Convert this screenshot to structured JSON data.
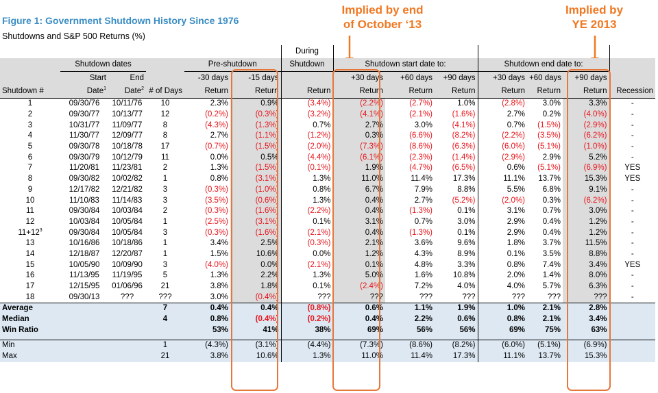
{
  "title": "Figure 1: Government Shutdown History Since 1976",
  "subtitle": "Shutdowns and S&P 500 Returns (%)",
  "callouts": {
    "left": [
      "Implied by end",
      "of October ‘13"
    ],
    "right": [
      "Implied by",
      "YE 2013"
    ]
  },
  "colors": {
    "accent": "#f07822",
    "title": "#3a8dc4",
    "negative": "#e8141a",
    "summary_bg": "#dde8f3",
    "highlight_bg": "#dcdcdc"
  },
  "header": {
    "during_top": "During",
    "shutdown_dates": "Shutdown dates",
    "pre_shutdown": "Pre-shutdown",
    "during_shutdown": "Shutdown",
    "start_group": "Shutdown start date to:",
    "end_group": "Shutdown end date to:",
    "start": "Start",
    "end": "End",
    "m30": "-30 days",
    "m15": "-15 days",
    "p30": "+30 days",
    "p60": "+60 days",
    "p90": "+90 days",
    "shutdown_num": "Shutdown #",
    "date": "Date",
    "sup1": "1",
    "sup2": "2",
    "num_days": "# of Days",
    "return": "Return",
    "recession": "Recession"
  },
  "chart_data": {
    "type": "table",
    "columns": [
      "Shutdown #",
      "Start Date",
      "End Date",
      "# of Days",
      "-30 days Return",
      "-15 days Return",
      "During Shutdown Return",
      "Start +30 days Return",
      "Start +60 days Return",
      "Start +90 days Return",
      "End +30 days Return",
      "End +60 days Return",
      "End +90 days Return",
      "Recession"
    ],
    "rows": [
      [
        "1",
        "",
        "09/30/76",
        "10/11/76",
        "10",
        "2.3%",
        "0.9%",
        "(3.4%)",
        "(2.2%)",
        "(2.7%)",
        "1.0%",
        "(2.8%)",
        "3.0%",
        "3.3%",
        "-"
      ],
      [
        "2",
        "",
        "09/30/77",
        "10/13/77",
        "12",
        "(0.2%)",
        "(0.3%)",
        "(3.2%)",
        "(4.1%)",
        "(2.1%)",
        "(1.6%)",
        "2.7%",
        "0.2%",
        "(4.0%)",
        "-"
      ],
      [
        "3",
        "",
        "10/31/77",
        "11/09/77",
        "8",
        "(4.3%)",
        "(1.3%)",
        "0.7%",
        "2.7%",
        "3.0%",
        "(4.1%)",
        "0.7%",
        "(1.5%)",
        "(2.9%)",
        "-"
      ],
      [
        "4",
        "",
        "11/30/77",
        "12/09/77",
        "8",
        "2.7%",
        "(1.1%)",
        "(1.2%)",
        "0.3%",
        "(6.6%)",
        "(8.2%)",
        "(2.2%)",
        "(3.5%)",
        "(6.2%)",
        "-"
      ],
      [
        "5",
        "",
        "09/30/78",
        "10/18/78",
        "17",
        "(0.7%)",
        "(1.5%)",
        "(2.0%)",
        "(7.3%)",
        "(8.6%)",
        "(6.3%)",
        "(6.0%)",
        "(5.1%)",
        "(1.0%)",
        "-"
      ],
      [
        "6",
        "",
        "09/30/79",
        "10/12/79",
        "11",
        "0.0%",
        "0.5%",
        "(4.4%)",
        "(6.1%)",
        "(2.3%)",
        "(1.4%)",
        "(2.9%)",
        "2.9%",
        "5.2%",
        "-"
      ],
      [
        "7",
        "",
        "11/20/81",
        "11/23/81",
        "2",
        "1.3%",
        "(1.5%)",
        "(0.1%)",
        "1.9%",
        "(4.7%)",
        "(6.5%)",
        "0.6%",
        "(5.1%)",
        "(6.9%)",
        "YES"
      ],
      [
        "8",
        "",
        "09/30/82",
        "10/02/82",
        "1",
        "0.8%",
        "(3.1%)",
        "1.3%",
        "11.0%",
        "11.4%",
        "17.3%",
        "11.1%",
        "13.7%",
        "15.3%",
        "YES"
      ],
      [
        "9",
        "",
        "12/17/82",
        "12/21/82",
        "3",
        "(0.3%)",
        "(1.0%)",
        "0.8%",
        "6.7%",
        "7.9%",
        "8.8%",
        "5.5%",
        "6.8%",
        "9.1%",
        "-"
      ],
      [
        "10",
        "",
        "11/10/83",
        "11/14/83",
        "3",
        "(3.5%)",
        "(0.6%)",
        "1.3%",
        "0.4%",
        "2.7%",
        "(5.2%)",
        "(2.0%)",
        "0.3%",
        "(6.2%)",
        "-"
      ],
      [
        "11",
        "",
        "09/30/84",
        "10/03/84",
        "2",
        "(0.3%)",
        "(1.6%)",
        "(2.2%)",
        "0.4%",
        "(1.3%)",
        "0.1%",
        "3.1%",
        "0.7%",
        "3.0%",
        "-"
      ],
      [
        "12",
        "",
        "10/03/84",
        "10/05/84",
        "1",
        "(2.5%)",
        "(3.1%)",
        "0.1%",
        "3.1%",
        "0.7%",
        "3.0%",
        "2.9%",
        "0.4%",
        "1.2%",
        "-"
      ],
      [
        "11+12",
        "3",
        "09/30/84",
        "10/05/84",
        "3",
        "(0.3%)",
        "(1.6%)",
        "(2.1%)",
        "0.4%",
        "(1.3%)",
        "0.1%",
        "2.9%",
        "0.4%",
        "1.2%",
        "-"
      ],
      [
        "13",
        "",
        "10/16/86",
        "10/18/86",
        "1",
        "3.4%",
        "2.5%",
        "(0.3%)",
        "2.1%",
        "3.6%",
        "9.6%",
        "1.8%",
        "3.7%",
        "11.5%",
        "-"
      ],
      [
        "14",
        "",
        "12/18/87",
        "12/20/87",
        "1",
        "1.5%",
        "10.6%",
        "0.0%",
        "1.2%",
        "4.3%",
        "8.9%",
        "0.1%",
        "3.5%",
        "8.8%",
        "-"
      ],
      [
        "15",
        "",
        "10/05/90",
        "10/09/90",
        "3",
        "(4.0%)",
        "0.0%",
        "(2.1%)",
        "0.1%",
        "4.8%",
        "3.3%",
        "0.8%",
        "7.4%",
        "3.4%",
        "YES"
      ],
      [
        "16",
        "",
        "11/13/95",
        "11/19/95",
        "5",
        "1.3%",
        "2.2%",
        "1.3%",
        "5.0%",
        "1.6%",
        "10.8%",
        "2.0%",
        "1.4%",
        "8.0%",
        "-"
      ],
      [
        "17",
        "",
        "12/15/95",
        "01/06/96",
        "21",
        "3.8%",
        "1.8%",
        "0.1%",
        "(2.4%)",
        "7.2%",
        "4.0%",
        "4.0%",
        "5.7%",
        "6.3%",
        "-"
      ],
      [
        "18",
        "",
        "09/30/13",
        "???",
        "???",
        "3.0%",
        "(0.4%)",
        "???",
        "???",
        "???",
        "???",
        "???",
        "???",
        "???",
        "-"
      ]
    ],
    "summary": [
      {
        "label": "Average",
        "days": "7",
        "values": [
          "0.4%",
          "0.4%",
          "(0.8%)",
          "0.6%",
          "1.1%",
          "1.9%",
          "1.0%",
          "2.1%",
          "2.8%"
        ]
      },
      {
        "label": "Median",
        "days": "4",
        "values": [
          "0.8%",
          "(0.4%)",
          "(0.2%)",
          "0.4%",
          "2.2%",
          "0.6%",
          "0.8%",
          "2.1%",
          "3.4%"
        ]
      },
      {
        "label": "Win Ratio",
        "days": "",
        "values": [
          "53%",
          "41%",
          "38%",
          "69%",
          "56%",
          "56%",
          "69%",
          "75%",
          "63%"
        ]
      }
    ],
    "minmax": [
      {
        "label": "Min",
        "days": "1",
        "values": [
          "(4.3%)",
          "(3.1%)",
          "(4.4%)",
          "(7.3%)",
          "(8.6%)",
          "(8.2%)",
          "(6.0%)",
          "(5.1%)",
          "(6.9%)"
        ]
      },
      {
        "label": "Max",
        "days": "21",
        "values": [
          "3.8%",
          "10.6%",
          "1.3%",
          "11.0%",
          "11.4%",
          "17.3%",
          "11.1%",
          "13.7%",
          "15.3%"
        ]
      }
    ]
  }
}
